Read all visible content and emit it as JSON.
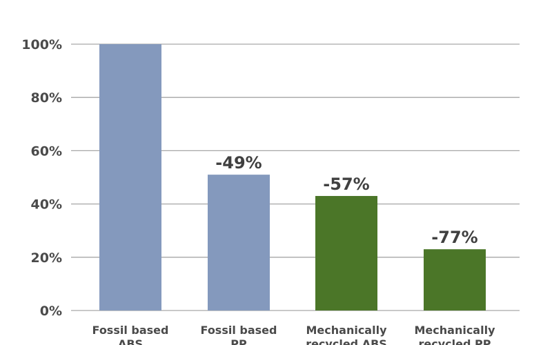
{
  "chart_data": {
    "type": "bar",
    "title": "",
    "xlabel": "",
    "ylabel": "",
    "categories": [
      [
        "Fossil based",
        "ABS"
      ],
      [
        "Fossil based",
        "PP"
      ],
      [
        "Mechanically",
        "recycled ABS"
      ],
      [
        "Mechanically",
        "recycled PP"
      ]
    ],
    "values": [
      100,
      51,
      43,
      23
    ],
    "data_labels": [
      "",
      "-49%",
      "-57%",
      "-77%"
    ],
    "colors": [
      "#8499bd",
      "#8499bd",
      "#4b7628",
      "#4b7628"
    ],
    "ylim": [
      0,
      100
    ],
    "yticks": [
      0,
      20,
      40,
      60,
      80,
      100
    ],
    "ytick_labels": [
      "0%",
      "20%",
      "40%",
      "60%",
      "80%",
      "100%"
    ],
    "grid": true,
    "gridline_color": "#a6a6a6",
    "legend": "none"
  }
}
